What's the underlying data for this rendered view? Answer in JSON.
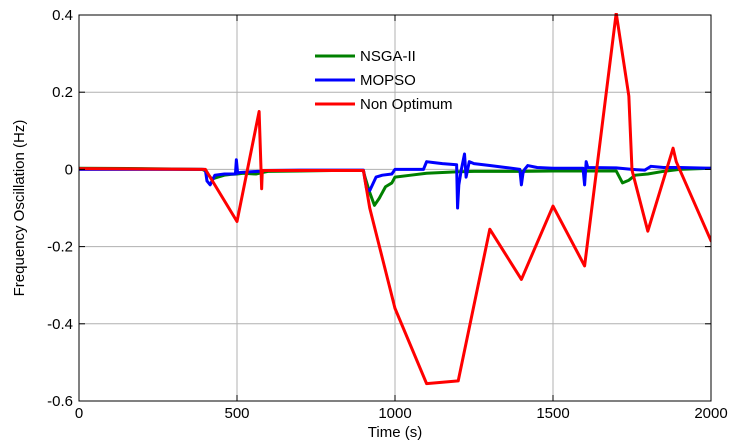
{
  "chart_data": {
    "type": "line",
    "xlabel": "Time (s)",
    "ylabel": "Frequency Oscillation (Hz)",
    "xlim": [
      0,
      2000
    ],
    "ylim": [
      -0.6,
      0.4
    ],
    "xticks": [
      0,
      500,
      1000,
      1500,
      2000
    ],
    "yticks": [
      -0.6,
      -0.4,
      -0.2,
      0,
      0.2,
      0.4
    ],
    "xtick_labels": [
      "0",
      "500",
      "1000",
      "1500",
      "2000"
    ],
    "ytick_labels": [
      "-0.6",
      "-0.4",
      "-0.2",
      "0",
      "0.2",
      "0.4"
    ],
    "grid": true,
    "legend_position": "top-center",
    "series": [
      {
        "name": "NSGA-II",
        "color": "#008000",
        "points": [
          [
            0,
            0.003
          ],
          [
            200,
            0.002
          ],
          [
            390,
            0.0
          ],
          [
            400,
            -0.004
          ],
          [
            420,
            -0.025
          ],
          [
            440,
            -0.02
          ],
          [
            460,
            -0.015
          ],
          [
            480,
            -0.013
          ],
          [
            500,
            -0.012
          ],
          [
            520,
            -0.01
          ],
          [
            560,
            -0.012
          ],
          [
            570,
            -0.01
          ],
          [
            580,
            -0.008
          ],
          [
            600,
            -0.005
          ],
          [
            700,
            -0.004
          ],
          [
            800,
            -0.003
          ],
          [
            900,
            -0.003
          ],
          [
            905,
            -0.02
          ],
          [
            920,
            -0.06
          ],
          [
            935,
            -0.093
          ],
          [
            950,
            -0.075
          ],
          [
            970,
            -0.045
          ],
          [
            990,
            -0.035
          ],
          [
            1000,
            -0.02
          ],
          [
            1050,
            -0.015
          ],
          [
            1100,
            -0.01
          ],
          [
            1150,
            -0.008
          ],
          [
            1200,
            -0.006
          ],
          [
            1250,
            -0.005
          ],
          [
            1300,
            -0.005
          ],
          [
            1350,
            -0.005
          ],
          [
            1400,
            -0.005
          ],
          [
            1500,
            -0.004
          ],
          [
            1600,
            -0.004
          ],
          [
            1700,
            -0.004
          ],
          [
            1720,
            -0.035
          ],
          [
            1740,
            -0.028
          ],
          [
            1760,
            -0.015
          ],
          [
            1800,
            -0.012
          ],
          [
            1850,
            -0.005
          ],
          [
            1900,
            0.0
          ],
          [
            2000,
            0.003
          ]
        ]
      },
      {
        "name": "MOPSO",
        "color": "#0000ff",
        "points": [
          [
            0,
            0.0
          ],
          [
            395,
            0.0
          ],
          [
            400,
            -0.002
          ],
          [
            405,
            -0.03
          ],
          [
            415,
            -0.04
          ],
          [
            430,
            -0.015
          ],
          [
            460,
            -0.012
          ],
          [
            495,
            -0.012
          ],
          [
            498,
            0.025
          ],
          [
            502,
            -0.01
          ],
          [
            510,
            -0.008
          ],
          [
            565,
            -0.005
          ],
          [
            575,
            -0.005
          ],
          [
            580,
            -0.003
          ],
          [
            700,
            -0.002
          ],
          [
            900,
            -0.002
          ],
          [
            910,
            -0.05
          ],
          [
            920,
            -0.055
          ],
          [
            940,
            -0.02
          ],
          [
            960,
            -0.015
          ],
          [
            990,
            -0.012
          ],
          [
            1000,
            0.0
          ],
          [
            1050,
            0.0
          ],
          [
            1090,
            0.0
          ],
          [
            1100,
            0.02
          ],
          [
            1120,
            0.018
          ],
          [
            1150,
            0.015
          ],
          [
            1195,
            0.012
          ],
          [
            1198,
            -0.1
          ],
          [
            1202,
            -0.04
          ],
          [
            1210,
            0.0
          ],
          [
            1220,
            0.04
          ],
          [
            1225,
            -0.02
          ],
          [
            1235,
            0.02
          ],
          [
            1250,
            0.015
          ],
          [
            1300,
            0.01
          ],
          [
            1350,
            0.005
          ],
          [
            1395,
            0.0
          ],
          [
            1400,
            -0.04
          ],
          [
            1405,
            -0.01
          ],
          [
            1410,
            0.0
          ],
          [
            1420,
            0.01
          ],
          [
            1450,
            0.005
          ],
          [
            1500,
            0.003
          ],
          [
            1595,
            0.003
          ],
          [
            1600,
            -0.04
          ],
          [
            1605,
            0.02
          ],
          [
            1610,
            0.005
          ],
          [
            1700,
            0.004
          ],
          [
            1750,
            0.0
          ],
          [
            1790,
            -0.002
          ],
          [
            1800,
            0.003
          ],
          [
            1810,
            0.008
          ],
          [
            1850,
            0.005
          ],
          [
            1900,
            0.005
          ],
          [
            2000,
            0.003
          ]
        ]
      },
      {
        "name": "Non Optimum",
        "color": "#ff0000",
        "points": [
          [
            0,
            0.002
          ],
          [
            400,
            0.0
          ],
          [
            500,
            -0.135
          ],
          [
            570,
            0.15
          ],
          [
            578,
            -0.05
          ],
          [
            580,
            -0.003
          ],
          [
            700,
            -0.003
          ],
          [
            900,
            -0.003
          ],
          [
            920,
            -0.1
          ],
          [
            1000,
            -0.36
          ],
          [
            1100,
            -0.555
          ],
          [
            1200,
            -0.548
          ],
          [
            1300,
            -0.155
          ],
          [
            1400,
            -0.285
          ],
          [
            1500,
            -0.095
          ],
          [
            1600,
            -0.25
          ],
          [
            1700,
            0.405
          ],
          [
            1740,
            0.19
          ],
          [
            1750,
            -0.002
          ],
          [
            1800,
            -0.16
          ],
          [
            1880,
            0.055
          ],
          [
            1890,
            0.02
          ],
          [
            2000,
            -0.185
          ]
        ]
      }
    ]
  }
}
